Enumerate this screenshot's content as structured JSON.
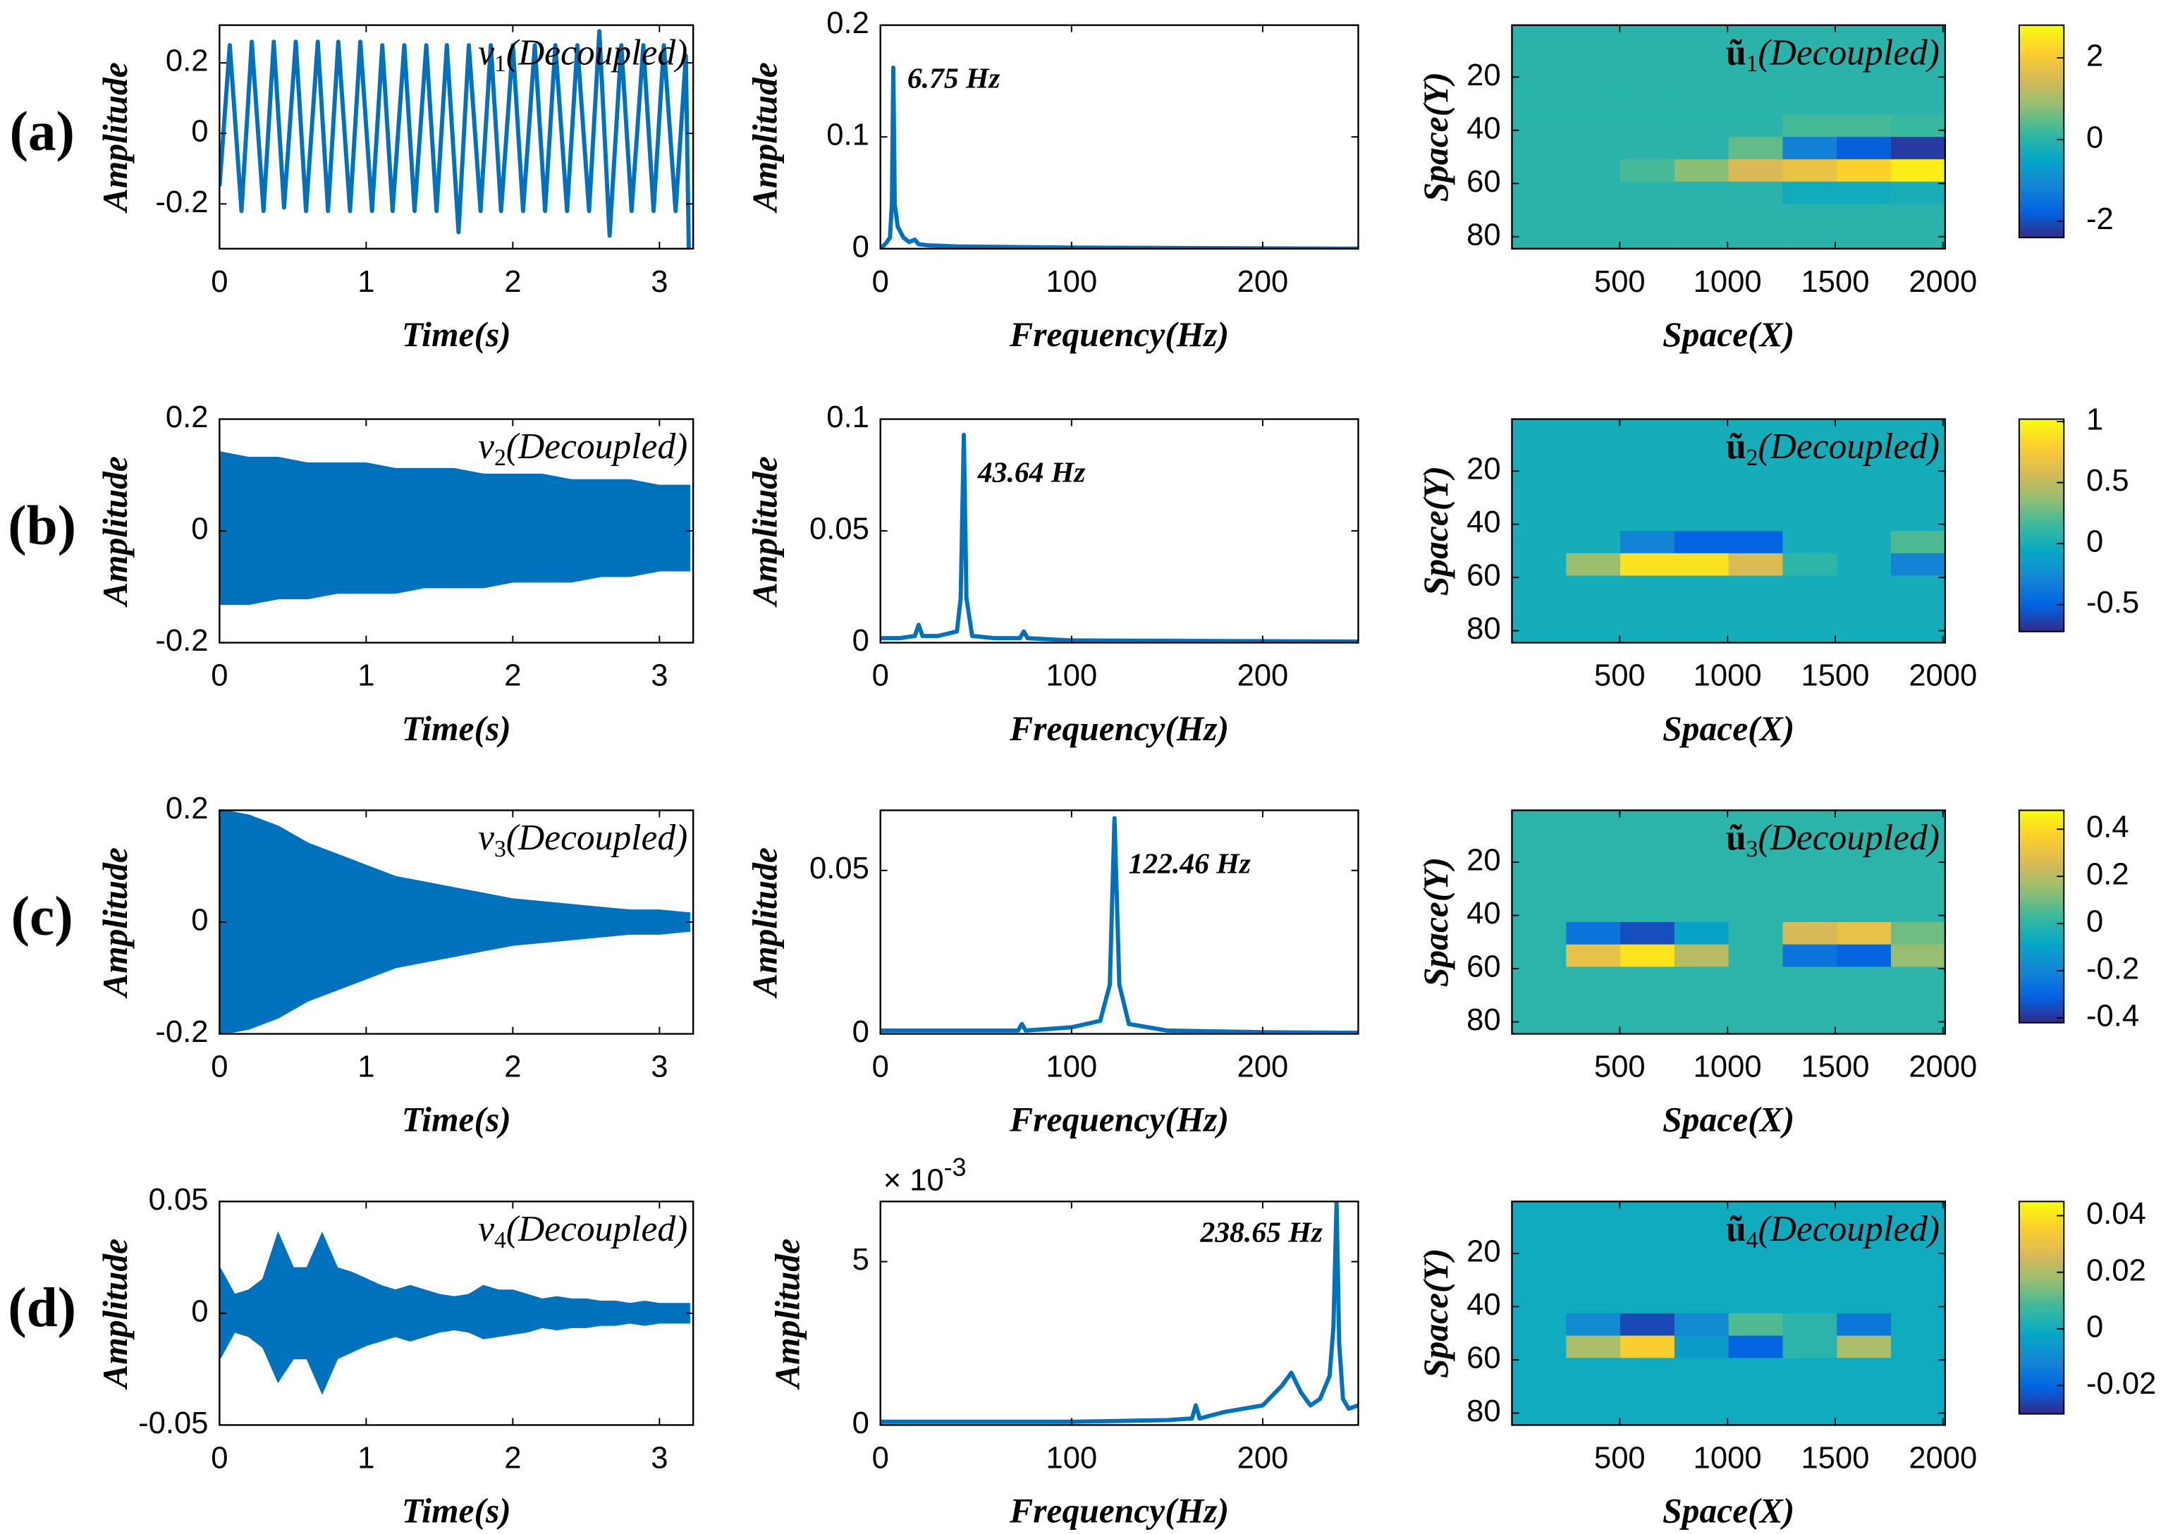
{
  "row_labels": [
    "(a)",
    "(b)",
    "(c)",
    "(d)"
  ],
  "chart_data": [
    {
      "type": "line",
      "color": "#0072bd",
      "xlabel": "Time(s)",
      "ylabel": "Amplitude",
      "legend": {
        "symbol": "v",
        "subscript": "1",
        "text": "(Decoupled)"
      },
      "xlim": [
        0,
        3.23
      ],
      "xticks": [
        0,
        1,
        2,
        3
      ],
      "ylim": [
        -0.327,
        0.307
      ],
      "yticks": [
        -0.2,
        0,
        0.2
      ],
      "x": [
        0,
        0.07,
        0.15,
        0.22,
        0.3,
        0.37,
        0.44,
        0.52,
        0.59,
        0.67,
        0.74,
        0.81,
        0.89,
        0.96,
        1.04,
        1.11,
        1.18,
        1.26,
        1.33,
        1.41,
        1.48,
        1.55,
        1.63,
        1.7,
        1.78,
        1.85,
        1.92,
        2,
        2.07,
        2.15,
        2.22,
        2.29,
        2.37,
        2.44,
        2.52,
        2.59,
        2.66,
        2.74,
        2.81,
        2.89,
        2.96,
        3.03,
        3.11,
        3.18,
        3.2
      ],
      "values": [
        -0.15,
        0.25,
        -0.22,
        0.26,
        -0.22,
        0.26,
        -0.21,
        0.26,
        -0.22,
        0.26,
        -0.22,
        0.26,
        -0.22,
        0.26,
        -0.22,
        0.25,
        -0.22,
        0.25,
        -0.22,
        0.25,
        -0.22,
        0.25,
        -0.28,
        0.25,
        -0.22,
        0.25,
        -0.22,
        0.25,
        -0.22,
        0.25,
        -0.22,
        0.25,
        -0.22,
        0.25,
        -0.22,
        0.29,
        -0.29,
        0.25,
        -0.22,
        0.25,
        -0.22,
        0.25,
        -0.22,
        0.22,
        -0.33
      ]
    },
    {
      "type": "line",
      "color": "#0072bd",
      "xlabel": "Frequency(Hz)",
      "ylabel": "Amplitude",
      "annotation": "6.75 Hz",
      "xlim": [
        0,
        250
      ],
      "xticks": [
        0,
        100,
        200
      ],
      "ylim": [
        0,
        0.2
      ],
      "yticks": [
        0,
        0.1,
        0.2
      ],
      "x": [
        0,
        3,
        5,
        6,
        6.75,
        7.5,
        9,
        12,
        15,
        18,
        20,
        25,
        40,
        100,
        250
      ],
      "values": [
        0,
        0.005,
        0.01,
        0.04,
        0.162,
        0.04,
        0.02,
        0.01,
        0.006,
        0.008,
        0.004,
        0.003,
        0.002,
        0.001,
        0
      ]
    },
    {
      "type": "heatmap",
      "colormap": "parula",
      "xlabel": "Space(X)",
      "ylabel": "Space(Y)",
      "legend": {
        "symbol": "ũ",
        "subscript": "1",
        "text": "(Decoupled)"
      },
      "xlim": [
        0,
        2010
      ],
      "xticks": [
        500,
        1000,
        1500,
        2000
      ],
      "ylim": [
        0.5,
        84.5
      ],
      "yticks": [
        20,
        40,
        60,
        80
      ],
      "y_reversed": true,
      "clim": [
        -2.4,
        2.8
      ],
      "cbticks": [
        -2,
        0,
        2
      ],
      "z": [
        [
          0,
          0,
          0,
          0,
          0,
          0,
          0,
          0
        ],
        [
          0,
          0,
          0,
          0,
          0,
          0,
          0,
          0
        ],
        [
          0,
          0,
          0,
          0,
          0,
          0,
          0,
          0
        ],
        [
          0,
          0,
          0,
          0,
          0,
          0,
          0,
          0
        ],
        [
          0,
          0,
          0,
          0,
          0,
          0.3,
          0.3,
          0.2
        ],
        [
          0,
          0,
          0,
          0,
          0.5,
          -1.2,
          -1.8,
          -2.2
        ],
        [
          0,
          0,
          0.3,
          0.8,
          1.5,
          1.8,
          2.2,
          2.6
        ],
        [
          0,
          0,
          0,
          0,
          0,
          -0.3,
          -0.3,
          -0.2
        ],
        [
          0,
          0,
          0,
          0,
          0,
          0,
          0,
          0
        ],
        [
          0,
          0,
          0,
          0,
          0,
          0,
          0,
          0
        ]
      ]
    },
    {
      "type": "band",
      "color": "#0072bd",
      "xlabel": "Time(s)",
      "ylabel": "Amplitude",
      "legend": {
        "symbol": "v",
        "subscript": "2",
        "text": "(Decoupled)"
      },
      "xlim": [
        0,
        3.23
      ],
      "xticks": [
        0,
        1,
        2,
        3
      ],
      "ylim": [
        -0.2,
        0.2
      ],
      "yticks": [
        -0.2,
        0,
        0.2
      ],
      "x": [
        0,
        0.2,
        0.4,
        0.6,
        0.8,
        1,
        1.2,
        1.4,
        1.6,
        1.8,
        2,
        2.2,
        2.4,
        2.6,
        2.8,
        3,
        3.2
      ],
      "upper": [
        0.14,
        0.13,
        0.13,
        0.12,
        0.12,
        0.12,
        0.11,
        0.11,
        0.11,
        0.1,
        0.1,
        0.1,
        0.09,
        0.09,
        0.09,
        0.08,
        0.08
      ],
      "lower": [
        -0.13,
        -0.13,
        -0.12,
        -0.12,
        -0.11,
        -0.11,
        -0.11,
        -0.1,
        -0.1,
        -0.1,
        -0.09,
        -0.09,
        -0.09,
        -0.08,
        -0.08,
        -0.07,
        -0.07
      ]
    },
    {
      "type": "line",
      "color": "#0072bd",
      "xlabel": "Frequency(Hz)",
      "ylabel": "Amplitude",
      "annotation": "43.64 Hz",
      "xlim": [
        0,
        250
      ],
      "xticks": [
        0,
        100,
        200
      ],
      "ylim": [
        0,
        0.1
      ],
      "yticks": [
        0,
        0.05,
        0.1
      ],
      "x": [
        0,
        10,
        18,
        20,
        22,
        30,
        40,
        42,
        43.64,
        45,
        48,
        60,
        73,
        75,
        77,
        100,
        250
      ],
      "values": [
        0.002,
        0.002,
        0.003,
        0.008,
        0.003,
        0.003,
        0.005,
        0.02,
        0.093,
        0.02,
        0.003,
        0.002,
        0.002,
        0.005,
        0.002,
        0.001,
        0.0005
      ]
    },
    {
      "type": "heatmap",
      "colormap": "parula",
      "xlabel": "Space(X)",
      "ylabel": "Space(Y)",
      "legend": {
        "symbol": "ũ",
        "subscript": "2",
        "text": "(Decoupled)"
      },
      "xlim": [
        0,
        2010
      ],
      "xticks": [
        500,
        1000,
        1500,
        2000
      ],
      "ylim": [
        0.5,
        84.5
      ],
      "yticks": [
        20,
        40,
        60,
        80
      ],
      "y_reversed": true,
      "clim": [
        -0.72,
        1.02
      ],
      "cbticks": [
        -0.5,
        0,
        0.5,
        1
      ],
      "z": [
        [
          0,
          0,
          0,
          0,
          0,
          0,
          0,
          0
        ],
        [
          0,
          0,
          0,
          0,
          0,
          0,
          0,
          0
        ],
        [
          0,
          0,
          0,
          0,
          0,
          0,
          0,
          0
        ],
        [
          0,
          0,
          0,
          0,
          0,
          0,
          0,
          0
        ],
        [
          0,
          0,
          0,
          0,
          0,
          0,
          0,
          0
        ],
        [
          0,
          0,
          -0.3,
          -0.5,
          -0.5,
          0,
          0,
          0.2
        ],
        [
          0,
          0.4,
          0.9,
          0.9,
          0.6,
          0.1,
          0,
          -0.3
        ],
        [
          0,
          0,
          0,
          0,
          0,
          0,
          0,
          0
        ],
        [
          0,
          0,
          0,
          0,
          0,
          0,
          0,
          0
        ],
        [
          0,
          0,
          0,
          0,
          0,
          0,
          0,
          0
        ]
      ]
    },
    {
      "type": "band",
      "color": "#0072bd",
      "xlabel": "Time(s)",
      "ylabel": "Amplitude",
      "legend": {
        "symbol": "v",
        "subscript": "3",
        "text": "(Decoupled)"
      },
      "xlim": [
        0,
        3.23
      ],
      "xticks": [
        0,
        1,
        2,
        3
      ],
      "ylim": [
        -0.2,
        0.2
      ],
      "yticks": [
        -0.2,
        0,
        0.2
      ],
      "x": [
        0,
        0.2,
        0.4,
        0.6,
        0.8,
        1,
        1.2,
        1.4,
        1.6,
        1.8,
        2,
        2.2,
        2.4,
        2.6,
        2.8,
        3,
        3.2
      ],
      "upper": [
        0.2,
        0.19,
        0.17,
        0.14,
        0.12,
        0.1,
        0.08,
        0.07,
        0.06,
        0.05,
        0.04,
        0.035,
        0.03,
        0.025,
        0.02,
        0.02,
        0.015
      ],
      "lower": [
        -0.2,
        -0.19,
        -0.17,
        -0.14,
        -0.12,
        -0.1,
        -0.08,
        -0.07,
        -0.06,
        -0.05,
        -0.04,
        -0.035,
        -0.03,
        -0.025,
        -0.02,
        -0.02,
        -0.015
      ]
    },
    {
      "type": "line",
      "color": "#0072bd",
      "xlabel": "Frequency(Hz)",
      "ylabel": "Amplitude",
      "annotation": "122.46 Hz",
      "xlim": [
        0,
        250
      ],
      "xticks": [
        0,
        100,
        200
      ],
      "ylim": [
        0,
        0.0684
      ],
      "yticks": [
        0,
        0.05
      ],
      "x": [
        0,
        50,
        72,
        74,
        76,
        100,
        115,
        120,
        122.46,
        125,
        130,
        150,
        200,
        250
      ],
      "values": [
        0.001,
        0.001,
        0.001,
        0.003,
        0.001,
        0.002,
        0.004,
        0.015,
        0.066,
        0.015,
        0.003,
        0.001,
        0.0005,
        0.0003
      ]
    },
    {
      "type": "heatmap",
      "colormap": "parula",
      "xlabel": "Space(X)",
      "ylabel": "Space(Y)",
      "legend": {
        "symbol": "ũ",
        "subscript": "3",
        "text": "(Decoupled)"
      },
      "xlim": [
        0,
        2010
      ],
      "xticks": [
        500,
        1000,
        1500,
        2000
      ],
      "ylim": [
        0.5,
        84.5
      ],
      "yticks": [
        20,
        40,
        60,
        80
      ],
      "y_reversed": true,
      "clim": [
        -0.42,
        0.48
      ],
      "cbticks": [
        -0.4,
        -0.2,
        0,
        0.2,
        0.4
      ],
      "z": [
        [
          0,
          0,
          0,
          0,
          0,
          0,
          0,
          0
        ],
        [
          0,
          0,
          0,
          0,
          0,
          0,
          0,
          0
        ],
        [
          0,
          0,
          0,
          0,
          0,
          0,
          0,
          0
        ],
        [
          0,
          0,
          0,
          0,
          0,
          0,
          0,
          0
        ],
        [
          0,
          0,
          0,
          0,
          0,
          0,
          0,
          0
        ],
        [
          0,
          -0.25,
          -0.35,
          -0.1,
          0,
          0.25,
          0.3,
          0.1
        ],
        [
          0,
          0.3,
          0.42,
          0.2,
          0,
          -0.25,
          -0.3,
          0.15
        ],
        [
          0,
          0,
          0,
          0,
          0,
          0,
          0,
          0
        ],
        [
          0,
          0,
          0,
          0,
          0,
          0,
          0,
          0
        ],
        [
          0,
          0,
          0,
          0,
          0,
          0,
          0,
          0
        ]
      ]
    },
    {
      "type": "band",
      "color": "#0072bd",
      "xlabel": "Time(s)",
      "ylabel": "Amplitude",
      "legend": {
        "symbol": "v",
        "subscript": "4",
        "text": "(Decoupled)"
      },
      "xlim": [
        0,
        3.23
      ],
      "xticks": [
        0,
        1,
        2,
        3
      ],
      "ylim": [
        -0.05,
        0.05
      ],
      "yticks": [
        -0.05,
        0,
        0.05
      ],
      "x": [
        0,
        0.1,
        0.2,
        0.3,
        0.4,
        0.5,
        0.6,
        0.7,
        0.8,
        0.9,
        1,
        1.1,
        1.2,
        1.3,
        1.4,
        1.5,
        1.6,
        1.7,
        1.8,
        1.9,
        2,
        2.1,
        2.2,
        2.3,
        2.4,
        2.5,
        2.6,
        2.7,
        2.8,
        2.9,
        3,
        3.1,
        3.2
      ],
      "upper": [
        0.02,
        0.008,
        0.01,
        0.015,
        0.035,
        0.02,
        0.02,
        0.035,
        0.02,
        0.018,
        0.015,
        0.012,
        0.01,
        0.012,
        0.01,
        0.008,
        0.007,
        0.008,
        0.012,
        0.01,
        0.01,
        0.008,
        0.006,
        0.007,
        0.006,
        0.006,
        0.005,
        0.005,
        0.004,
        0.005,
        0.004,
        0.004,
        0.004
      ],
      "lower": [
        -0.02,
        -0.008,
        -0.01,
        -0.015,
        -0.03,
        -0.02,
        -0.02,
        -0.035,
        -0.02,
        -0.017,
        -0.014,
        -0.012,
        -0.01,
        -0.012,
        -0.01,
        -0.008,
        -0.007,
        -0.008,
        -0.011,
        -0.01,
        -0.009,
        -0.008,
        -0.006,
        -0.007,
        -0.006,
        -0.006,
        -0.005,
        -0.005,
        -0.004,
        -0.005,
        -0.004,
        -0.004,
        -0.004
      ]
    },
    {
      "type": "line",
      "color": "#0072bd",
      "xlabel": "Frequency(Hz)",
      "ylabel": "Amplitude",
      "annotation": "238.65 Hz",
      "exponent": {
        "base": "× 10",
        "power": "-3"
      },
      "xlim": [
        0,
        250
      ],
      "xticks": [
        0,
        100,
        200
      ],
      "ylim": [
        0,
        6.84
      ],
      "yticks": [
        0,
        5
      ],
      "x": [
        0,
        50,
        100,
        150,
        163,
        165,
        167,
        180,
        200,
        210,
        215,
        220,
        225,
        230,
        235,
        237,
        238.65,
        240,
        242,
        245,
        250
      ],
      "values": [
        0.1,
        0.1,
        0.1,
        0.15,
        0.2,
        0.6,
        0.2,
        0.4,
        0.6,
        1.2,
        1.6,
        1.0,
        0.6,
        0.8,
        1.5,
        3,
        6.8,
        2.5,
        0.8,
        0.5,
        0.6
      ]
    },
    {
      "type": "heatmap",
      "colormap": "parula",
      "xlabel": "Space(X)",
      "ylabel": "Space(Y)",
      "legend": {
        "symbol": "ũ",
        "subscript": "4",
        "text": "(Decoupled)"
      },
      "xlim": [
        0,
        2010
      ],
      "xticks": [
        500,
        1000,
        1500,
        2000
      ],
      "ylim": [
        0.5,
        84.5
      ],
      "yticks": [
        20,
        40,
        60,
        80
      ],
      "y_reversed": true,
      "clim": [
        -0.03,
        0.045
      ],
      "cbticks": [
        -0.02,
        0,
        0.02,
        0.04
      ],
      "z": [
        [
          0,
          0,
          0,
          0,
          0,
          0,
          0,
          0
        ],
        [
          0,
          0,
          0,
          0,
          0,
          0,
          0,
          0
        ],
        [
          0,
          0,
          0,
          0,
          0,
          0,
          0,
          0
        ],
        [
          0,
          0,
          0,
          0,
          0,
          0,
          0,
          0
        ],
        [
          0,
          0,
          0,
          0,
          0,
          0,
          0,
          0
        ],
        [
          0,
          -0.01,
          -0.025,
          -0.01,
          0.01,
          0.005,
          -0.015,
          0
        ],
        [
          0,
          0.02,
          0.035,
          -0.005,
          -0.02,
          0.005,
          0.02,
          0
        ],
        [
          0,
          0,
          0,
          0,
          0,
          0,
          0,
          0
        ],
        [
          0,
          0,
          0,
          0,
          0,
          0,
          0,
          0
        ],
        [
          0,
          0,
          0,
          0,
          0,
          0,
          0,
          0
        ]
      ]
    }
  ]
}
